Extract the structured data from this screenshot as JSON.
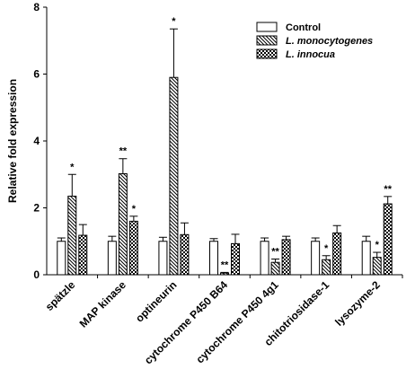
{
  "chart_data": {
    "type": "bar",
    "ylabel": "Relative fold expression",
    "xlabel": "",
    "title": "",
    "ylim": [
      0,
      8
    ],
    "yticks": [
      0,
      2,
      4,
      6,
      8
    ],
    "legend_position": "top-right",
    "grid": false,
    "categories": [
      "spätzle",
      "MAP kinase",
      "optineurin",
      "cytochrome P450 B64",
      "cytochrome P450 4g1",
      "chitotriosidase-1",
      "lysozyme-2"
    ],
    "series": [
      {
        "name": "Control",
        "pattern": "plain",
        "values": [
          1.0,
          1.0,
          1.0,
          1.0,
          1.0,
          1.0,
          1.0
        ],
        "errors": [
          0.1,
          0.15,
          0.12,
          0.08,
          0.1,
          0.1,
          0.15
        ],
        "significance": [
          "",
          "",
          "",
          "",
          "",
          "",
          ""
        ]
      },
      {
        "name": "L. monocytogenes",
        "pattern": "hatch",
        "values": [
          2.35,
          3.02,
          5.9,
          0.05,
          0.37,
          0.45,
          0.52
        ],
        "errors": [
          0.65,
          0.45,
          1.45,
          0.02,
          0.1,
          0.12,
          0.15
        ],
        "significance": [
          "*",
          "**",
          "*",
          "**",
          "**",
          "*",
          "*"
        ]
      },
      {
        "name": "L. innocua",
        "pattern": "checker",
        "values": [
          1.18,
          1.6,
          1.2,
          0.93,
          1.05,
          1.25,
          2.12
        ],
        "errors": [
          0.32,
          0.15,
          0.35,
          0.28,
          0.1,
          0.22,
          0.22
        ],
        "significance": [
          "",
          "*",
          "",
          "",
          "",
          "",
          "**"
        ]
      }
    ]
  },
  "colors": {
    "axis": "#000000",
    "bar_fill": "#ffffff",
    "pattern": "#000000"
  }
}
